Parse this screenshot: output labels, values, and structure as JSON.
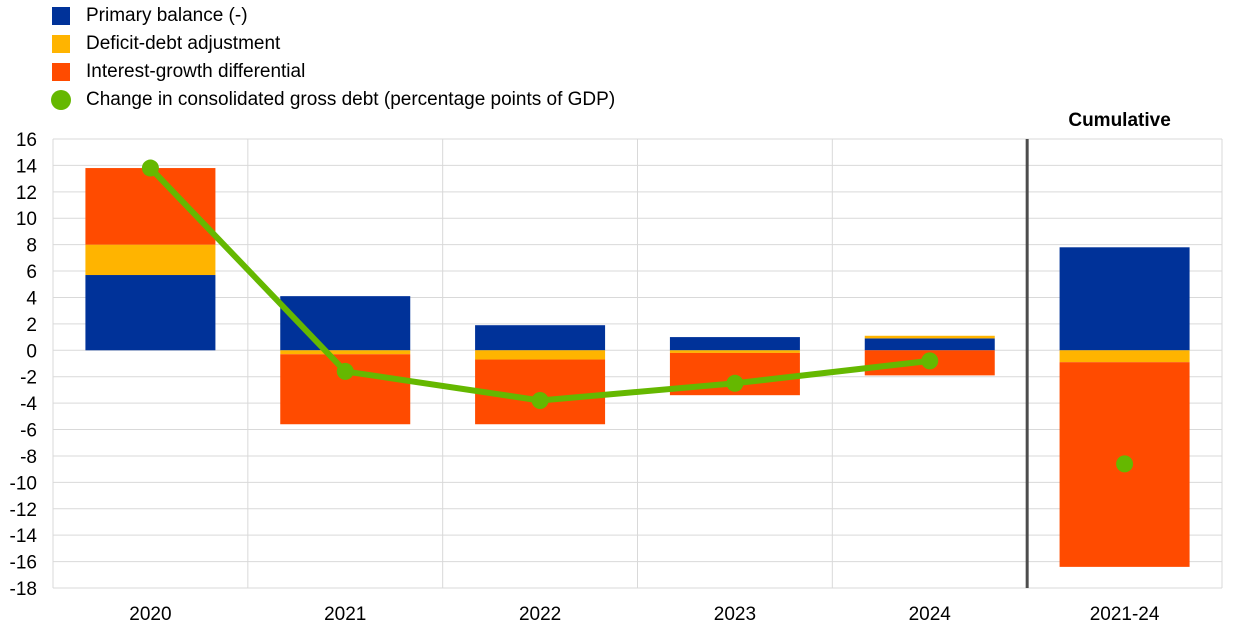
{
  "chart_data": {
    "type": "bar",
    "stacked": true,
    "categories": [
      "2020",
      "2021",
      "2022",
      "2023",
      "2024",
      "2021-24"
    ],
    "series": [
      {
        "name": "Primary balance (-)",
        "color": "#003299",
        "values": [
          5.7,
          4.1,
          1.9,
          1.0,
          0.9,
          7.8
        ]
      },
      {
        "name": "Deficit-debt adjustment",
        "color": "#FFB400",
        "values": [
          2.3,
          -0.3,
          -0.7,
          -0.2,
          0.2,
          -0.9
        ]
      },
      {
        "name": "Interest-growth differential",
        "color": "#FF4B00",
        "values": [
          5.8,
          -5.3,
          -4.9,
          -3.2,
          -1.9,
          -15.5
        ]
      },
      {
        "name": "Change in consolidated gross debt (percentage points of GDP)",
        "color": "#65B800",
        "kind": "line-dots",
        "values": [
          13.8,
          -1.6,
          -3.8,
          -2.5,
          -0.8,
          -8.6
        ]
      }
    ],
    "annotation": "Cumulative",
    "ylim": [
      -18,
      16
    ],
    "yticks": [
      16,
      14,
      12,
      10,
      8,
      6,
      4,
      2,
      0,
      -2,
      -4,
      -6,
      -8,
      -10,
      -12,
      -14,
      -16,
      -18
    ],
    "line_connects_first": 5,
    "separator_before_category": "2021-24",
    "grid": true,
    "legend": "top-left"
  }
}
